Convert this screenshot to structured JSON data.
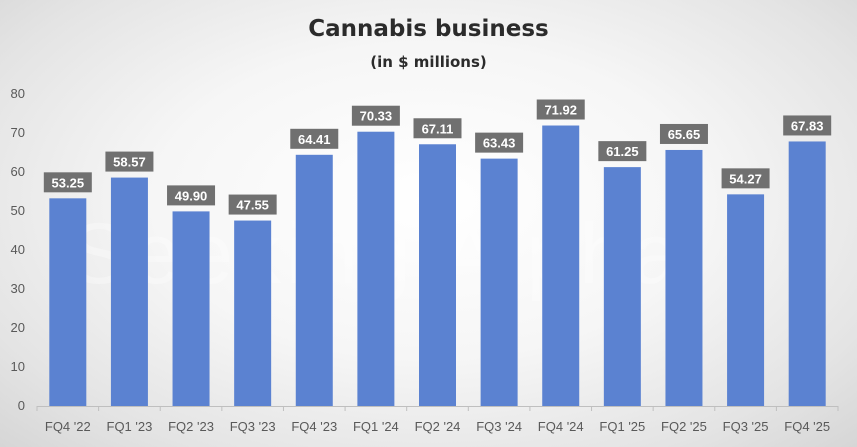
{
  "watermark": "Seeking Alpha",
  "chart_data": {
    "type": "bar",
    "title": "Cannabis business",
    "subtitle": "(in $ millions)",
    "categories": [
      "FQ4 '22",
      "FQ1 '23",
      "FQ2 '23",
      "FQ3 '23",
      "FQ4 '23",
      "FQ1 '24",
      "FQ2 '24",
      "FQ3 '24",
      "FQ4 '24",
      "FQ1 '25",
      "FQ2 '25",
      "FQ3 '25",
      "FQ4 '25"
    ],
    "values": [
      53.25,
      58.57,
      49.9,
      47.55,
      64.41,
      70.33,
      67.11,
      63.43,
      71.92,
      61.25,
      65.65,
      54.27,
      67.83
    ],
    "value_labels": [
      "53.25",
      "58.57",
      "49.90",
      "47.55",
      "64.41",
      "70.33",
      "67.11",
      "63.43",
      "71.92",
      "61.25",
      "65.65",
      "54.27",
      "67.83"
    ],
    "ylim": [
      0,
      80
    ],
    "yticks": [
      0,
      10,
      20,
      30,
      40,
      50,
      60,
      70,
      80
    ],
    "xlabel": "",
    "ylabel": "",
    "grid": false,
    "legend": "none",
    "bar_color": "#5b82d1",
    "label_box_color": "#707070"
  }
}
